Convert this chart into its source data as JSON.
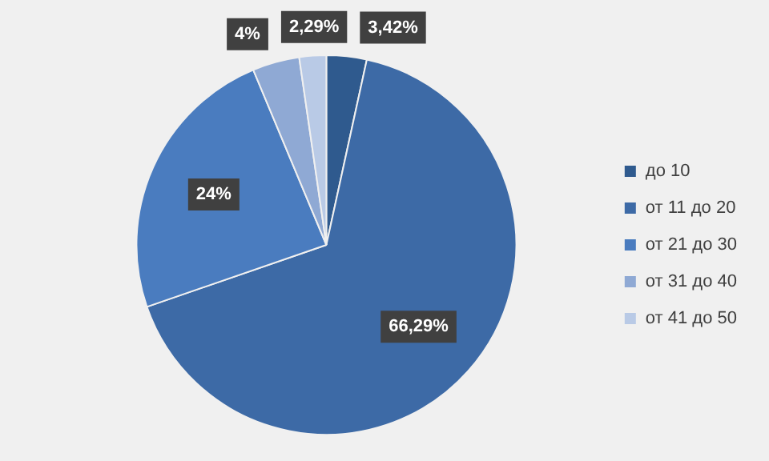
{
  "chart_data": {
    "type": "pie",
    "categories": [
      "до 10",
      "от 11 до 20",
      "от 21 до 30",
      "от 31 до 40",
      "от 41 до 50"
    ],
    "values": [
      3.42,
      66.29,
      24,
      4,
      2.29
    ],
    "colors": [
      "#2f5a8e",
      "#3d6aa6",
      "#4a7cbf",
      "#8fa9d4",
      "#b9cae6"
    ],
    "value_labels": [
      "3,42%",
      "66,29%",
      "24%",
      "4%",
      "2,29%"
    ],
    "legend": "right"
  }
}
